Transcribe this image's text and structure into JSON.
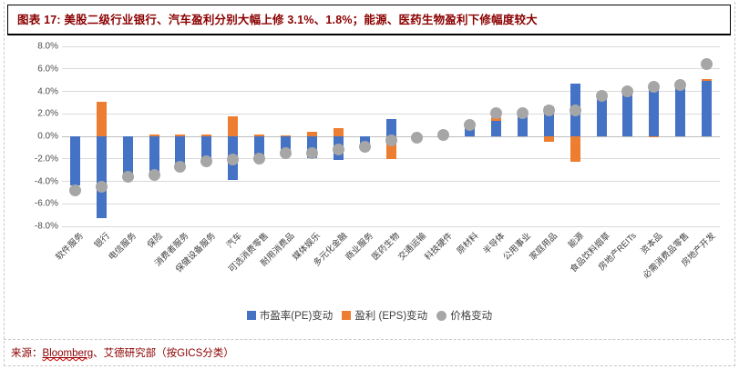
{
  "header": {
    "title": "图表 17:  美股二级行业银行、汽车盈利分别大幅上修 3.1%、1.8%；能源、医药生物盈利下修幅度较大"
  },
  "footer": {
    "source_label": "来源：",
    "source_link": "Bloomberg",
    "source_rest": "、艾德研究部（按GICS分类）"
  },
  "colors": {
    "pe_bar": "#4472C4",
    "eps_bar": "#ED7D31",
    "price_dot": "#A6A6A6",
    "title_text": "#8B0000",
    "gridline": "#DADADA"
  },
  "chart_data": {
    "type": "bar",
    "stacked": true,
    "grid": true,
    "legend_position": "bottom",
    "ylim": [
      -8,
      8
    ],
    "ytick_step": 2,
    "ytick_labels": [
      "8.0%",
      "6.0%",
      "4.0%",
      "2.0%",
      "0.0%",
      "-2.0%",
      "-4.0%",
      "-6.0%",
      "-8.0%"
    ],
    "categories": [
      "软件服务",
      "银行",
      "电信服务",
      "保险",
      "消费者服务",
      "保健设备服务",
      "汽车",
      "可选消费零售",
      "耐用消费品",
      "媒体娱乐",
      "多元化金融",
      "商业服务",
      "医药生物",
      "交通运输",
      "科技硬件",
      "原材料",
      "半导体",
      "公用事业",
      "家庭用品",
      "能源",
      "食品饮料烟草",
      "房地产REITs",
      "资本品",
      "必需消费品零售",
      "房地产开发"
    ],
    "series": [
      {
        "name": "市盈率(PE)变动",
        "type": "bar",
        "color": "#4472C4",
        "values": [
          -4.4,
          -7.3,
          -3.4,
          -3.2,
          -2.6,
          -2.2,
          -3.9,
          -2.1,
          -1.7,
          -1.9,
          -2.1,
          -1.2,
          1.5,
          -0.2,
          0,
          0.8,
          1.4,
          2.0,
          2.7,
          4.7,
          3.5,
          3.7,
          4.1,
          4.4,
          4.9
        ]
      },
      {
        "name": "盈利 (EPS)变动",
        "type": "bar",
        "color": "#ED7D31",
        "values": [
          0,
          3.1,
          0,
          0.2,
          0.2,
          0.2,
          1.8,
          0.2,
          0.1,
          0.4,
          0.7,
          0,
          -2.0,
          0.1,
          0,
          0,
          0.3,
          0,
          -0.5,
          -2.3,
          0,
          0,
          -0.1,
          0,
          0.2
        ]
      },
      {
        "name": "价格变动",
        "type": "scatter",
        "color": "#A6A6A6",
        "values": [
          -4.8,
          -4.5,
          -3.6,
          -3.4,
          -2.7,
          -2.2,
          -2.1,
          -2.0,
          -1.5,
          -1.5,
          -1.2,
          -0.9,
          -0.4,
          -0.1,
          0.1,
          1.0,
          2.1,
          2.1,
          2.3,
          2.3,
          3.6,
          4.0,
          4.4,
          4.6,
          6.4
        ]
      }
    ]
  }
}
